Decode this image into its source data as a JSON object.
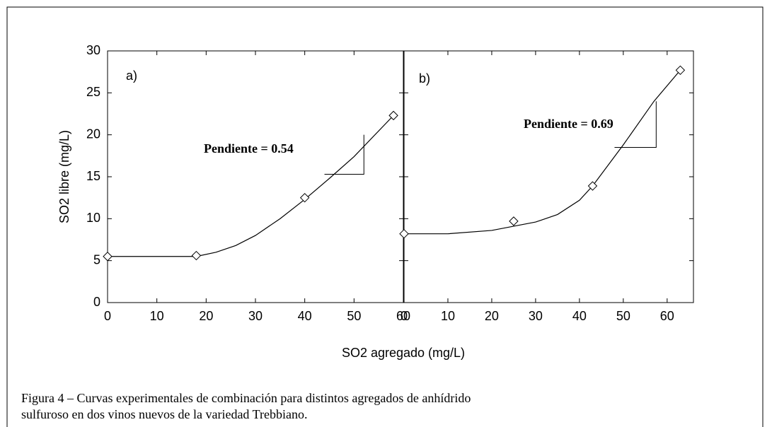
{
  "figure": {
    "xlabel": "SO2 agregado (mg/L)",
    "ylabel": "SO2 libre (mg/L)",
    "caption": [
      "Figura 4 – Curvas experimentales de combinación para distintos agregados de anhídrido",
      "sulfuroso en dos vinos nuevos de la variedad Trebbiano."
    ]
  },
  "chart_data": [
    {
      "type": "scatter",
      "label": "a)",
      "annotation": "Pendiente = 0.54",
      "color": "#000000",
      "xlim": [
        0,
        60
      ],
      "xticks": [
        0,
        10,
        20,
        30,
        40,
        50,
        60
      ],
      "ylim": [
        0,
        30
      ],
      "yticks": [
        0,
        5,
        10,
        15,
        20,
        25,
        30
      ],
      "points": {
        "x": [
          0,
          18,
          40,
          58
        ],
        "values": [
          5.5,
          5.6,
          12.5,
          22.3
        ]
      },
      "curve": {
        "x": [
          0,
          18,
          22,
          26,
          30,
          35,
          40,
          45,
          50,
          58
        ],
        "values": [
          5.5,
          5.5,
          6,
          6.8,
          8,
          10,
          12.3,
          14.8,
          17.4,
          22.3
        ]
      }
    },
    {
      "type": "scatter",
      "label": "b)",
      "annotation": "Pendiente = 0.69",
      "color": "#000000",
      "xlim": [
        0,
        66
      ],
      "xticks": [
        0,
        10,
        20,
        30,
        40,
        50,
        60
      ],
      "ylim": [
        0,
        30
      ],
      "yticks": [
        0,
        5,
        10,
        15,
        20,
        25,
        30
      ],
      "points": {
        "x": [
          0,
          25,
          43,
          63
        ],
        "values": [
          8.2,
          9.7,
          13.9,
          27.7
        ]
      },
      "curve": {
        "x": [
          0,
          10,
          20,
          30,
          35,
          40,
          43,
          50,
          57,
          63
        ],
        "values": [
          8.2,
          8.2,
          8.6,
          9.6,
          10.5,
          12.2,
          13.9,
          18.8,
          24,
          27.7
        ]
      }
    }
  ]
}
